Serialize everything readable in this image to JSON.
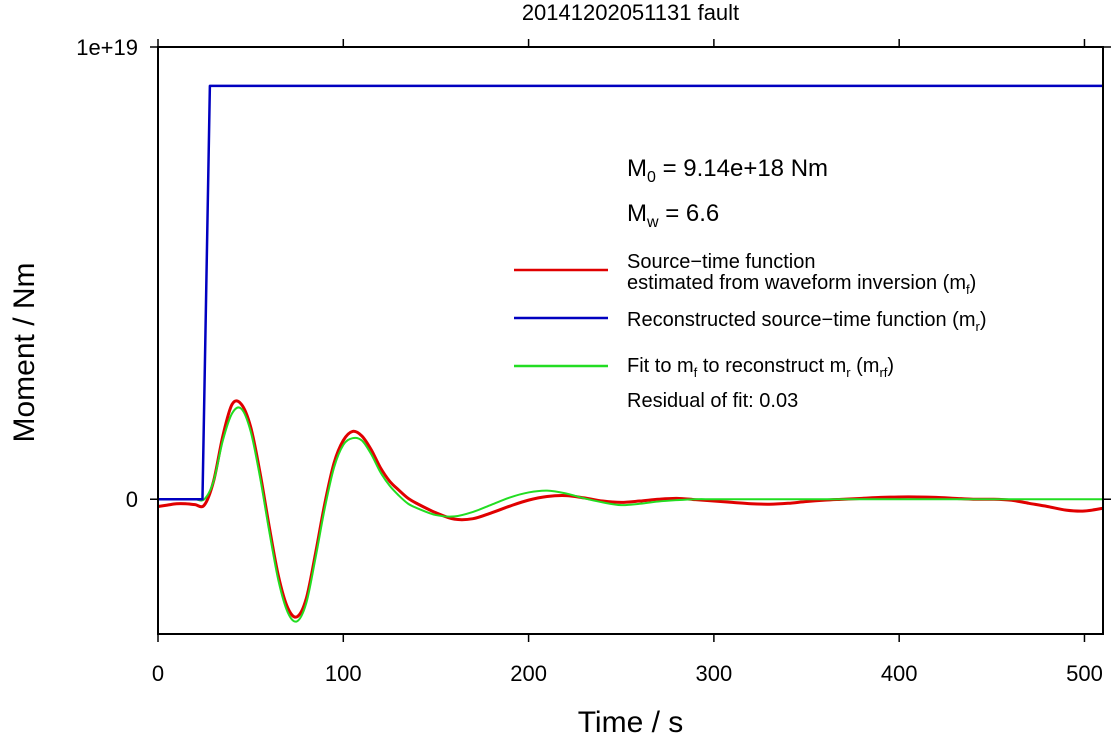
{
  "chart_data": {
    "type": "line",
    "title": "20141202051131 fault",
    "xlabel": "Time / s",
    "ylabel": "Moment / Nm",
    "xlim": [
      0,
      510
    ],
    "ylim": [
      -2.98e+18,
      1e+19
    ],
    "x_ticks": [
      0,
      100,
      200,
      300,
      400,
      500
    ],
    "x_tick_labels": [
      "0",
      "100",
      "200",
      "300",
      "400",
      "500"
    ],
    "y_ticks": [
      0,
      1e+19
    ],
    "y_tick_labels": [
      "0",
      "1e+19"
    ],
    "grid": false,
    "legend_position": "right",
    "annotations": {
      "m0_main": "M",
      "m0_sub": "0",
      "m0_rest": " = 9.14e+18 Nm",
      "mw_main": "M",
      "mw_sub": "w",
      "mw_rest": " = 6.6",
      "residual": "Residual of fit: 0.03"
    },
    "legend": [
      {
        "color": "#e00000",
        "lines": [
          {
            "text": "Source−time function",
            "sub": ""
          },
          {
            "text": "estimated from waveform inversion (m",
            "sub": "f",
            "after": ")"
          }
        ]
      },
      {
        "color": "#0000c0",
        "lines": [
          {
            "text": "Reconstructed source−time function (m",
            "sub": "r",
            "after": ")"
          }
        ]
      },
      {
        "color": "#22dd22",
        "lines": [
          {
            "text": "Fit to m",
            "sub": "f",
            "after": " to reconstruct m",
            "sub2": "r",
            "after2": " (m",
            "sub3": "rf",
            "after3": ")"
          }
        ]
      }
    ],
    "series": [
      {
        "color": "#0000c0",
        "x": [
          0,
          24,
          28,
          30,
          100,
          200,
          300,
          400,
          510
        ],
        "y": [
          0,
          0,
          9.14e+18,
          9.14e+18,
          9.14e+18,
          9.14e+18,
          9.14e+18,
          9.14e+18,
          9.14e+18
        ]
      },
      {
        "color": "#e00000",
        "x": [
          0,
          5,
          10,
          15,
          20,
          25,
          30,
          35,
          40,
          45,
          50,
          55,
          60,
          65,
          70,
          75,
          80,
          85,
          90,
          95,
          100,
          105,
          110,
          115,
          120,
          125,
          130,
          135,
          140,
          150,
          160,
          170,
          180,
          190,
          200,
          210,
          220,
          230,
          240,
          250,
          260,
          270,
          280,
          290,
          300,
          310,
          320,
          330,
          340,
          350,
          360,
          370,
          380,
          390,
          400,
          410,
          420,
          430,
          440,
          450,
          460,
          470,
          480,
          490,
          500,
          510
        ],
        "y": [
          -1.6e+17,
          -1.3e+17,
          -1e+17,
          -1e+17,
          -1.2e+17,
          -1.3e+17,
          4e+17,
          1.4e+18,
          2.1e+18,
          2.1e+18,
          1.6e+18,
          6e+17,
          -6e+17,
          -1.7e+18,
          -2.4e+18,
          -2.6e+18,
          -2.2e+18,
          -1.2e+18,
          -1e+17,
          8e+17,
          1.3e+18,
          1.5e+18,
          1.4e+18,
          1.1e+18,
          7e+17,
          4e+17,
          2e+17,
          2e+16,
          -1e+17,
          -3e+17,
          -4.4e+17,
          -4.3e+17,
          -3e+17,
          -1.5e+17,
          -2e+16,
          6e+16,
          8e+16,
          3e+16,
          -4e+16,
          -7e+16,
          -4e+16,
          0,
          2e+16,
          -1e+16,
          -4e+16,
          -7e+16,
          -1e+17,
          -1.1e+17,
          -9e+16,
          -5e+16,
          -2e+16,
          0,
          2e+16,
          4e+16,
          5e+16,
          5e+16,
          4e+16,
          2e+16,
          0,
          0,
          -2e+16,
          -9e+16,
          -1.6e+17,
          -2.4e+17,
          -2.6e+17,
          -2e+17
        ]
      },
      {
        "color": "#22dd22",
        "x": [
          0,
          5,
          10,
          15,
          20,
          25,
          30,
          35,
          40,
          45,
          50,
          55,
          60,
          65,
          70,
          75,
          80,
          85,
          90,
          95,
          100,
          105,
          110,
          115,
          120,
          125,
          130,
          135,
          140,
          150,
          160,
          170,
          180,
          190,
          200,
          210,
          220,
          230,
          240,
          250,
          260,
          270,
          280,
          290,
          300,
          320,
          340,
          360,
          380,
          400,
          420,
          440,
          460,
          480,
          500,
          510
        ],
        "y": [
          0,
          0,
          0,
          0,
          0,
          0,
          4e+17,
          1.3e+18,
          1.9e+18,
          2e+18,
          1.5e+18,
          5e+17,
          -7e+17,
          -1.8e+18,
          -2.5e+18,
          -2.7e+18,
          -2.3e+18,
          -1.3e+18,
          -2e+17,
          7e+17,
          1.2e+18,
          1.35e+18,
          1.3e+18,
          1e+18,
          6e+17,
          3e+17,
          8e+16,
          -1e+17,
          -2e+17,
          -3.5e+17,
          -3.8e+17,
          -2.8e+17,
          -1.2e+17,
          4e+16,
          1.5e+17,
          1.9e+17,
          1.3e+17,
          2e+16,
          -7e+16,
          -1.3e+17,
          -1e+17,
          -5e+16,
          -2e+16,
          0,
          0,
          0,
          0,
          0,
          0,
          0,
          0,
          0,
          0,
          0,
          0,
          0
        ]
      }
    ]
  }
}
